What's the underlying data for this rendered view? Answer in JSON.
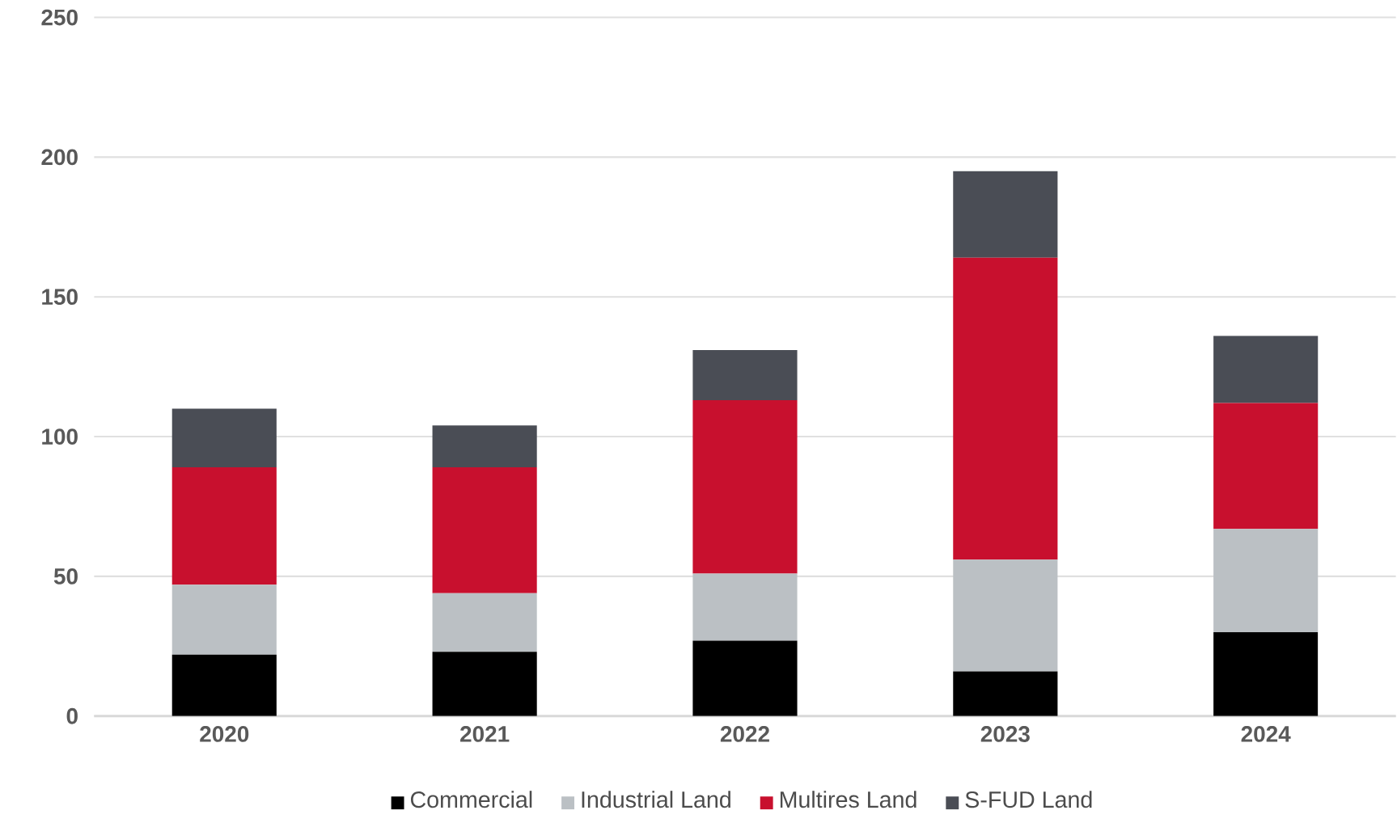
{
  "chart_data": {
    "type": "bar",
    "stacked": true,
    "categories": [
      "2020",
      "2021",
      "2022",
      "2023",
      "2024"
    ],
    "series": [
      {
        "name": "Commercial",
        "color": "#000000",
        "values": [
          22,
          23,
          27,
          16,
          30
        ]
      },
      {
        "name": "Industrial Land",
        "color": "#bbc0c4",
        "values": [
          25,
          21,
          24,
          40,
          37
        ]
      },
      {
        "name": "Multires Land",
        "color": "#c8102e",
        "values": [
          42,
          45,
          62,
          108,
          45
        ]
      },
      {
        "name": "S-FUD Land",
        "color": "#4a4d55",
        "values": [
          21,
          15,
          18,
          31,
          24
        ]
      }
    ],
    "ylim": [
      0,
      250
    ],
    "yticks": [
      0,
      50,
      100,
      150,
      200,
      250
    ],
    "grid": "y",
    "legend": "bottom"
  }
}
